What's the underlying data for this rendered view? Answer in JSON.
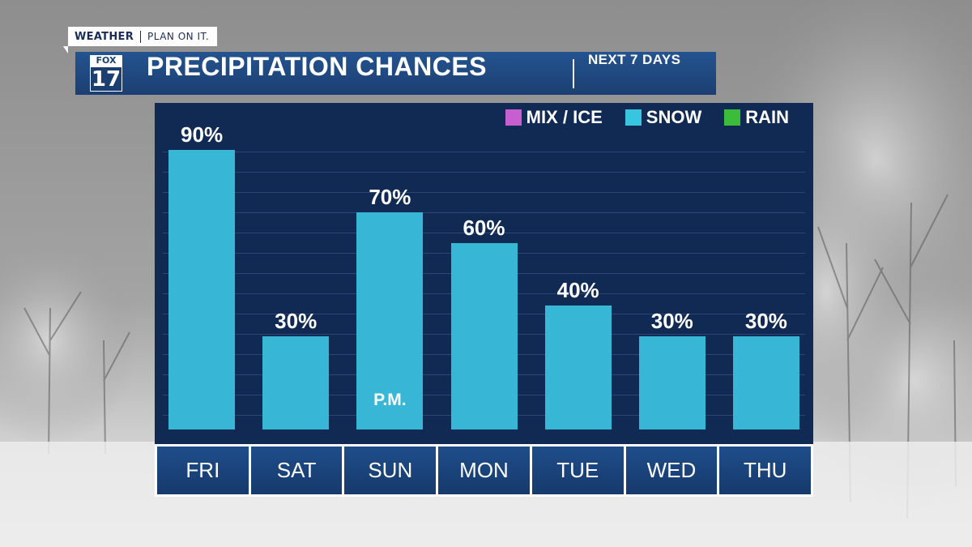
{
  "brand": {
    "network": "WEATHER",
    "tagline": "PLAN ON IT."
  },
  "logo": {
    "top": "FOX",
    "number": "17"
  },
  "header": {
    "title": "PRECIPITATION CHANCES",
    "subtitle": "NEXT 7 DAYS"
  },
  "colors": {
    "panel": "#102a54",
    "banner": "#1f4a85",
    "bar": "#37b6d6",
    "mix_ice": "#c85fd1",
    "snow": "#37c5e0",
    "rain": "#3bbd3b"
  },
  "chart_data": {
    "type": "bar",
    "title": "PRECIPITATION CHANCES",
    "subtitle": "NEXT 7 DAYS",
    "categories": [
      "FRI",
      "SAT",
      "SUN",
      "MON",
      "TUE",
      "WED",
      "THU"
    ],
    "series": [
      {
        "name": "SNOW",
        "values": [
          90,
          30,
          70,
          60,
          40,
          30,
          30
        ]
      }
    ],
    "value_labels": [
      "90%",
      "30%",
      "70%",
      "60%",
      "40%",
      "30%",
      "30%"
    ],
    "annotations": [
      {
        "category": "SUN",
        "text": "P.M."
      }
    ],
    "legend": {
      "placement": "top-right",
      "entries": [
        {
          "label": "MIX / ICE",
          "color": "#c85fd1"
        },
        {
          "label": "SNOW",
          "color": "#37c5e0"
        },
        {
          "label": "RAIN",
          "color": "#3bbd3b"
        }
      ]
    },
    "ylim": [
      0,
      100
    ],
    "grid": true,
    "xlabel": "",
    "ylabel": ""
  }
}
